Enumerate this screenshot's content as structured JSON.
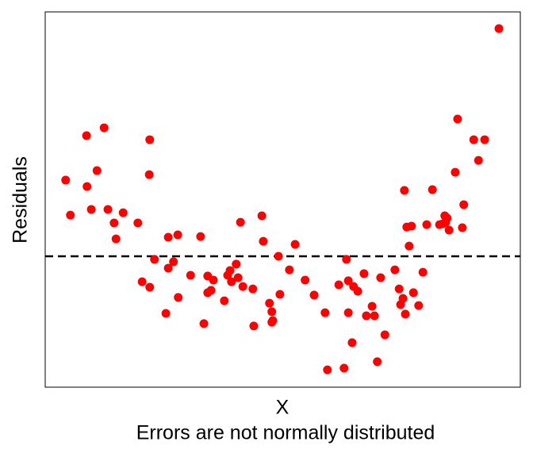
{
  "chart_data": {
    "type": "scatter",
    "x_label": "X",
    "y_label": "Residuals",
    "caption": "Errors are not normally distributed",
    "color": "#ff0000",
    "xlim": [
      0,
      100
    ],
    "ylim": [
      -5.5,
      10.27
    ],
    "hline": 0,
    "x": [
      4.3,
      5.3,
      8.7,
      8.8,
      9.7,
      10.9,
      12.4,
      13.2,
      14.5,
      14.9,
      16.4,
      19.5,
      20.4,
      22.0,
      21.9,
      22.0,
      23.0,
      25.4,
      25.9,
      25.9,
      27.0,
      27.9,
      28.0,
      30.6,
      32.7,
      33.4,
      34.2,
      34.2,
      34.9,
      35.4,
      37.7,
      38.4,
      38.9,
      39.2,
      40.2,
      40.6,
      41.1,
      41.6,
      43.7,
      43.9,
      45.6,
      45.9,
      47.2,
      47.7,
      47.7,
      47.9,
      49.1,
      49.4,
      51.4,
      52.6,
      54.7,
      56.6,
      58.9,
      59.4,
      61.8,
      62.9,
      63.4,
      63.8,
      63.8,
      64.6,
      64.9,
      65.8,
      67.1,
      67.6,
      68.8,
      69.3,
      69.9,
      70.6,
      71.5,
      73.6,
      74.5,
      74.8,
      75.3,
      75.6,
      75.8,
      76.1,
      76.6,
      77.1,
      77.5,
      78.6,
      79.5,
      80.3,
      81.5,
      83.0,
      83.7,
      84.1,
      84.3,
      84.6,
      85.0,
      86.3,
      86.8,
      87.8,
      88.1,
      90.2,
      91.2,
      92.5,
      95.5
    ],
    "values": [
      3.2,
      1.73,
      5.07,
      2.93,
      1.97,
      3.6,
      5.4,
      1.97,
      1.4,
      0.73,
      1.83,
      1.4,
      -1.07,
      4.9,
      3.43,
      -1.3,
      -0.13,
      -2.4,
      0.8,
      -0.5,
      -0.23,
      0.9,
      -1.73,
      -0.8,
      0.83,
      -2.83,
      -0.83,
      -1.53,
      -1.43,
      -1.0,
      -1.87,
      -0.8,
      -0.6,
      -1.07,
      -0.33,
      -0.9,
      1.43,
      -1.27,
      -1.37,
      -2.93,
      1.7,
      0.63,
      -1.97,
      -2.33,
      -2.77,
      -2.7,
      0,
      -1.6,
      -0.57,
      0.5,
      -1.0,
      -1.63,
      -2.37,
      -4.77,
      -1.2,
      -4.7,
      -0.13,
      -1.03,
      -2.37,
      -3.63,
      -1.27,
      -1.47,
      -0.73,
      -2.5,
      -2.1,
      -2.5,
      -4.43,
      -0.9,
      -3.3,
      -0.57,
      -1.37,
      -2.03,
      -1.77,
      2.77,
      -2.43,
      1.23,
      0.43,
      1.27,
      -1.53,
      -2.07,
      -0.67,
      1.33,
      2.8,
      1.33,
      1.37,
      1.7,
      1.43,
      1.6,
      1.1,
      3.53,
      5.77,
      1.2,
      2.17,
      4.9,
      4.03,
      4.9,
      9.57
    ]
  }
}
